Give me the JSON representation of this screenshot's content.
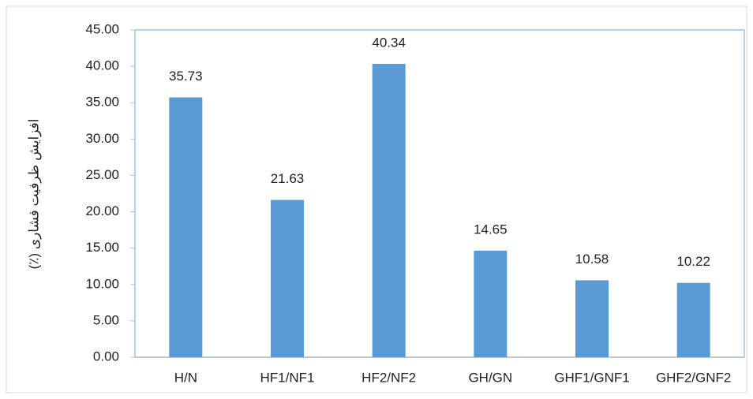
{
  "chart_data": {
    "type": "bar",
    "y_label": "افزایش ظرفیت فشاری (٪)",
    "categories": [
      "H/N",
      "HF1/NF1",
      "HF2/NF2",
      "GH/GN",
      "GHF1/GNF1",
      "GHF2/GNF2"
    ],
    "values": [
      35.73,
      21.63,
      40.34,
      14.65,
      10.58,
      10.22
    ],
    "color": "#5b9bd5",
    "ylim": [
      0,
      45
    ],
    "yticks": [
      {
        "value": 0,
        "label": "0.00"
      },
      {
        "value": 5,
        "label": "5.00"
      },
      {
        "value": 10,
        "label": "10.00"
      },
      {
        "value": 15,
        "label": "15.00"
      },
      {
        "value": 20,
        "label": "20.00"
      },
      {
        "value": 25,
        "label": "25.00"
      },
      {
        "value": 30,
        "label": "30.00"
      },
      {
        "value": 35,
        "label": "35.00"
      },
      {
        "value": 40,
        "label": "40.00"
      },
      {
        "value": 45,
        "label": "45.00"
      }
    ],
    "grid": false
  }
}
